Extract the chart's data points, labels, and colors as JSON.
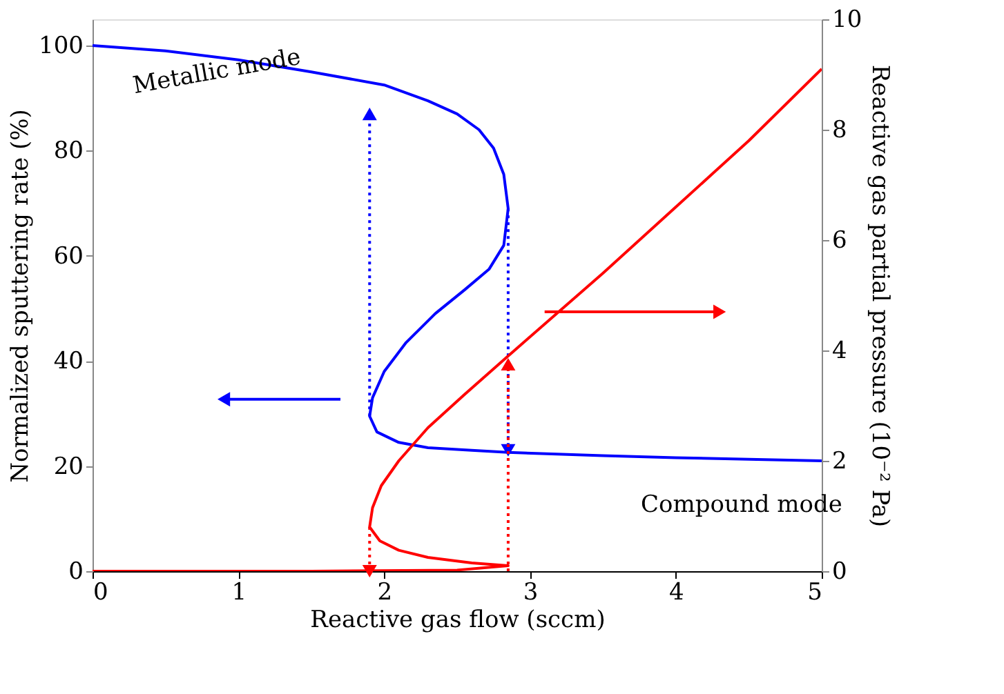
{
  "chart_data": {
    "type": "line",
    "xlabel": "Reactive gas flow (sccm)",
    "ylabel": "Normalized sputtering rate (%)",
    "y2label": "Reactive gas partial pressure (10⁻² Pa)",
    "xlim": [
      0,
      5
    ],
    "xticks": [
      0,
      1,
      2,
      3,
      4,
      5
    ],
    "ylim": [
      0,
      105
    ],
    "yticks": [
      0,
      20,
      40,
      60,
      80,
      100
    ],
    "y2lim": [
      0,
      10
    ],
    "y2ticks": [
      0,
      2,
      4,
      6,
      8,
      10
    ],
    "grid": false,
    "series": [
      {
        "color": "#0000ff",
        "line_style": "solid",
        "x": [
          0,
          0.5,
          1,
          1.5,
          2,
          2.3,
          2.5,
          2.65,
          2.75,
          2.82,
          2.85,
          2.82,
          2.72,
          2.55,
          2.35,
          2.15,
          2.0,
          1.92,
          1.9,
          1.95,
          2.1,
          2.3,
          2.6,
          2.85,
          3.5,
          4,
          4.5,
          5
        ],
        "values": [
          100,
          99,
          97.3,
          95,
          92.5,
          89.5,
          87,
          84,
          80.5,
          75.5,
          69,
          62,
          57.5,
          53.5,
          49,
          43.5,
          38,
          33,
          29.5,
          26.5,
          24.5,
          23.5,
          23,
          22.6,
          22,
          21.6,
          21.3,
          21
        ]
      },
      {
        "color": "#ff0000",
        "line_style": "solid",
        "axis": "y2",
        "x": [
          0,
          1.5,
          2.5,
          2.85,
          2.6,
          2.3,
          2.1,
          1.97,
          1.9,
          1.92,
          1.98,
          2.1,
          2.3,
          2.55,
          2.85,
          3.5,
          4,
          4.5,
          5
        ],
        "values": [
          0,
          0,
          0.02,
          0.1,
          0.15,
          0.25,
          0.38,
          0.55,
          0.8,
          1.15,
          1.55,
          2.0,
          2.6,
          3.2,
          3.9,
          5.4,
          6.6,
          7.8,
          9.1
        ]
      },
      {
        "color": "#0000ff",
        "line_style": "dotted",
        "marker": "triangle",
        "x": [
          1.9,
          1.9
        ],
        "values": [
          29.5,
          87
        ]
      },
      {
        "color": "#0000ff",
        "line_style": "dotted",
        "marker": "triangle",
        "x": [
          2.85,
          2.85
        ],
        "values": [
          69,
          23
        ]
      },
      {
        "color": "#ff0000",
        "line_style": "dotted",
        "marker": "triangle",
        "axis": "y2",
        "x": [
          1.9,
          1.9
        ],
        "values": [
          0.8,
          0
        ]
      },
      {
        "color": "#ff0000",
        "line_style": "dotted",
        "marker": "triangle",
        "axis": "y2",
        "x": [
          2.85,
          2.85
        ],
        "values": [
          0,
          3.75
        ]
      },
      {
        "color": "#0000ff",
        "line_style": "solid",
        "marker": "triangle",
        "x": [
          1.7,
          0.9
        ],
        "values": [
          32.7,
          32.7
        ]
      },
      {
        "color": "#ff0000",
        "line_style": "solid",
        "marker": "triangle",
        "axis": "y2",
        "x": [
          3.1,
          4.3
        ],
        "values": [
          4.7,
          4.7
        ]
      }
    ],
    "annotations": [
      "Metallic mode",
      "Compound mode"
    ]
  }
}
